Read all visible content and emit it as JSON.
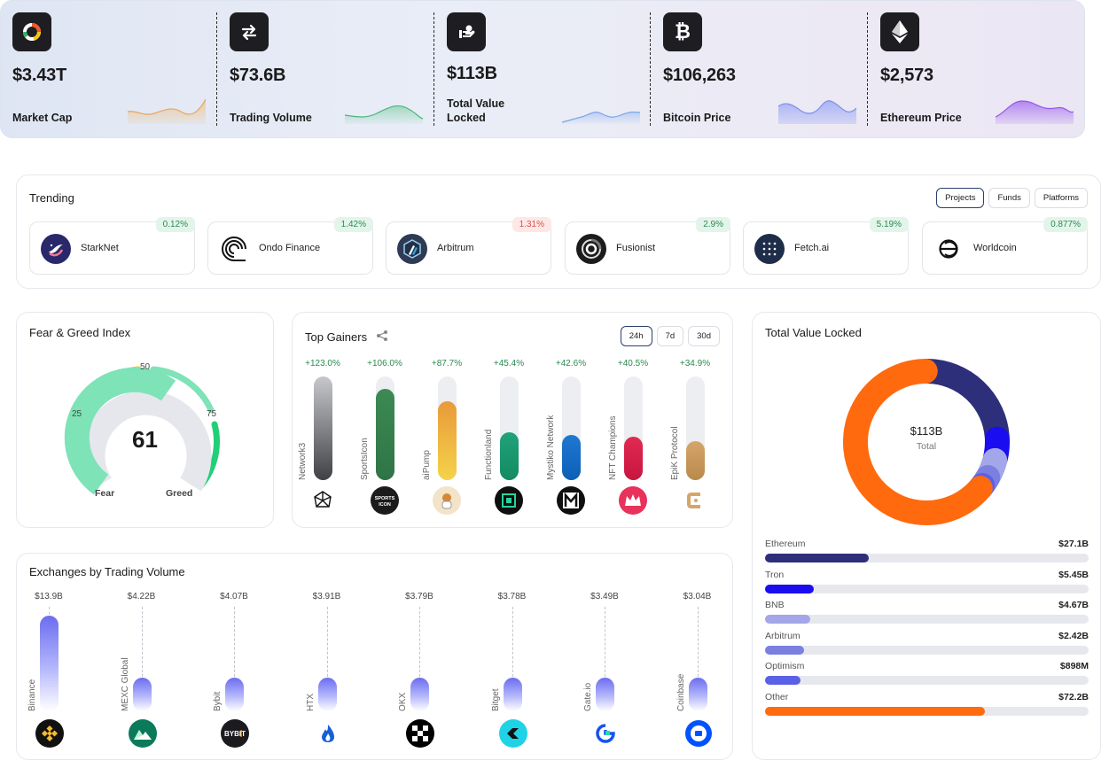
{
  "stats": [
    {
      "value": "$3.43T",
      "label": "Market Cap",
      "icon": "market-cap-icon",
      "spark_color": "#f0b56a"
    },
    {
      "value": "$73.6B",
      "label": "Trading Volume",
      "icon": "swap-arrows-icon",
      "spark_color": "#5cc48a"
    },
    {
      "value": "$113B",
      "label": "Total Value Locked",
      "icon": "locked-hand-icon",
      "spark_color": "#8db3f0"
    },
    {
      "value": "$106,263",
      "label": "Bitcoin Price",
      "icon": "bitcoin-icon",
      "spark_color": "#8d9cf5"
    },
    {
      "value": "$2,573",
      "label": "Ethereum Price",
      "icon": "ethereum-icon",
      "spark_color": "#a46ef0"
    }
  ],
  "trending": {
    "title": "Trending",
    "tabs": [
      "Projects",
      "Funds",
      "Platforms"
    ],
    "active_tab": "Projects",
    "items": [
      {
        "name": "StarkNet",
        "change": "0.12%",
        "direction": "up"
      },
      {
        "name": "Ondo Finance",
        "change": "1.42%",
        "direction": "up"
      },
      {
        "name": "Arbitrum",
        "change": "1.31%",
        "direction": "down"
      },
      {
        "name": "Fusionist",
        "change": "2.9%",
        "direction": "up"
      },
      {
        "name": "Fetch.ai",
        "change": "5.19%",
        "direction": "up"
      },
      {
        "name": "Worldcoin",
        "change": "0.877%",
        "direction": "up"
      }
    ]
  },
  "fear_greed": {
    "title": "Fear & Greed Index",
    "value": "61",
    "ticks": [
      "25",
      "50",
      "75"
    ],
    "low_label": "Fear",
    "high_label": "Greed"
  },
  "top_gainers": {
    "title": "Top Gainers",
    "tabs": [
      "24h",
      "7d",
      "30d"
    ],
    "active_tab": "24h",
    "items": [
      {
        "name": "Network3",
        "change": "+123.0%",
        "fill": 1.0,
        "color_top": "#c6c8cc",
        "color_bottom": "#3f4145"
      },
      {
        "name": "SportsIcon",
        "change": "+106.0%",
        "fill": 0.88,
        "color_top": "#3c8a54",
        "color_bottom": "#2f7446"
      },
      {
        "name": "aiPump",
        "change": "+87.7%",
        "fill": 0.76,
        "color_top": "#e89a3a",
        "color_bottom": "#f5d34a"
      },
      {
        "name": "Functionland",
        "change": "+45.4%",
        "fill": 0.46,
        "color_top": "#1fa37a",
        "color_bottom": "#148a62"
      },
      {
        "name": "Mystiko Network",
        "change": "+42.6%",
        "fill": 0.44,
        "color_top": "#1f78d1",
        "color_bottom": "#0d5fb5"
      },
      {
        "name": "NFT Champions",
        "change": "+40.5%",
        "fill": 0.42,
        "color_top": "#e02a52",
        "color_bottom": "#c81640"
      },
      {
        "name": "EpiK Protocol",
        "change": "+34.9%",
        "fill": 0.38,
        "color_top": "#d6a56a",
        "color_bottom": "#b88a4a"
      }
    ]
  },
  "exchanges": {
    "title": "Exchanges by Trading Volume",
    "items": [
      {
        "name": "Binance",
        "value": "$13.9B",
        "amount": 13.9
      },
      {
        "name": "MEXC Global",
        "value": "$4.22B",
        "amount": 4.22
      },
      {
        "name": "Bybit",
        "value": "$4.07B",
        "amount": 4.07
      },
      {
        "name": "HTX",
        "value": "$3.91B",
        "amount": 3.91
      },
      {
        "name": "OKX",
        "value": "$3.79B",
        "amount": 3.79
      },
      {
        "name": "Bitget",
        "value": "$3.78B",
        "amount": 3.78
      },
      {
        "name": "Gate.io",
        "value": "$3.49B",
        "amount": 3.49
      },
      {
        "name": "Coinbase",
        "value": "$3.04B",
        "amount": 3.04
      }
    ]
  },
  "tvl": {
    "title": "Total Value Locked",
    "center_value": "$113B",
    "center_label": "Total",
    "items": [
      {
        "name": "Ethereum",
        "value": "$27.1B",
        "amount": 27.1,
        "color": "#2d2f7a",
        "bar_fraction": 0.32
      },
      {
        "name": "Tron",
        "value": "$5.45B",
        "amount": 5.45,
        "color": "#1a0df0",
        "bar_fraction": 0.15
      },
      {
        "name": "BNB",
        "value": "$4.67B",
        "amount": 4.67,
        "color": "#a3a6e8",
        "bar_fraction": 0.14
      },
      {
        "name": "Arbitrum",
        "value": "$2.42B",
        "amount": 2.42,
        "color": "#7b7fe0",
        "bar_fraction": 0.12
      },
      {
        "name": "Optimism",
        "value": "$898M",
        "amount": 0.898,
        "color": "#5b61e6",
        "bar_fraction": 0.11
      },
      {
        "name": "Other",
        "value": "$72.2B",
        "amount": 72.2,
        "color": "#ff6a0f",
        "bar_fraction": 0.68
      }
    ]
  }
}
